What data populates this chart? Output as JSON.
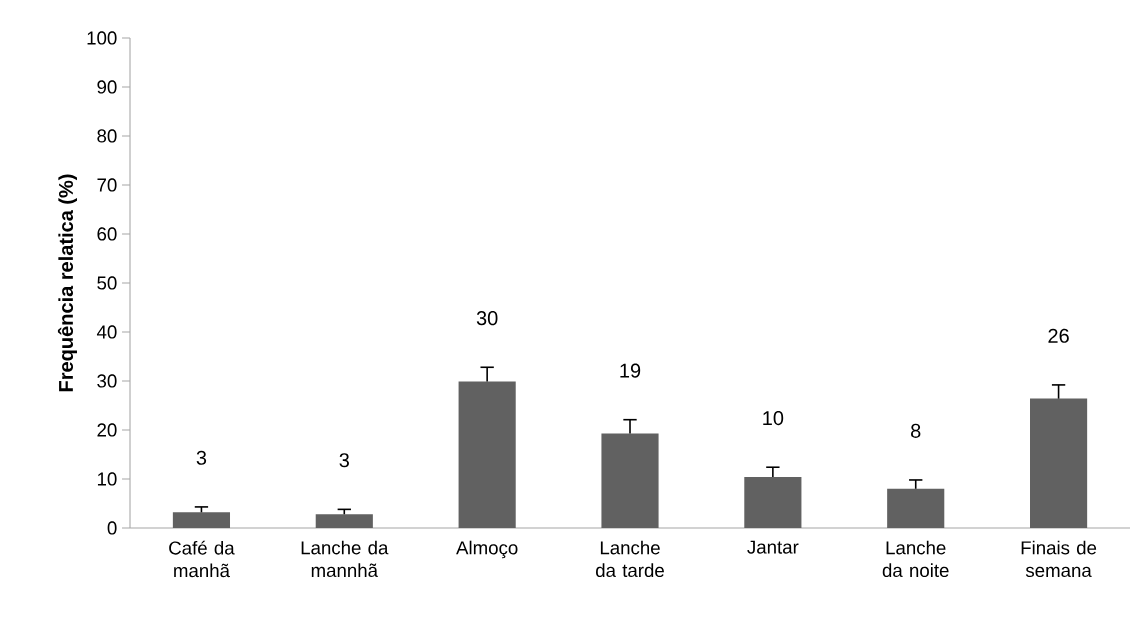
{
  "chart_data": {
    "type": "bar",
    "ylabel": "Frequência relatica (%)",
    "categories": [
      "Café da manhã",
      "Lanche da mannhã",
      "Almoço",
      "Lanche da tarde",
      "Jantar",
      "Lanche da noite",
      "Finais de semana"
    ],
    "values": [
      3.2,
      2.8,
      29.9,
      19.3,
      10.4,
      8.0,
      26.4
    ],
    "errors": [
      1.1,
      1.0,
      2.9,
      2.8,
      2.0,
      1.8,
      2.8
    ],
    "value_labels": [
      "3",
      "3",
      "30",
      "19",
      "10",
      "8",
      "26"
    ],
    "color": "#616161",
    "ylim": [
      0,
      100
    ],
    "yticks": [
      0,
      10,
      20,
      30,
      40,
      50,
      60,
      70,
      80,
      90,
      100
    ],
    "grid": false
  }
}
